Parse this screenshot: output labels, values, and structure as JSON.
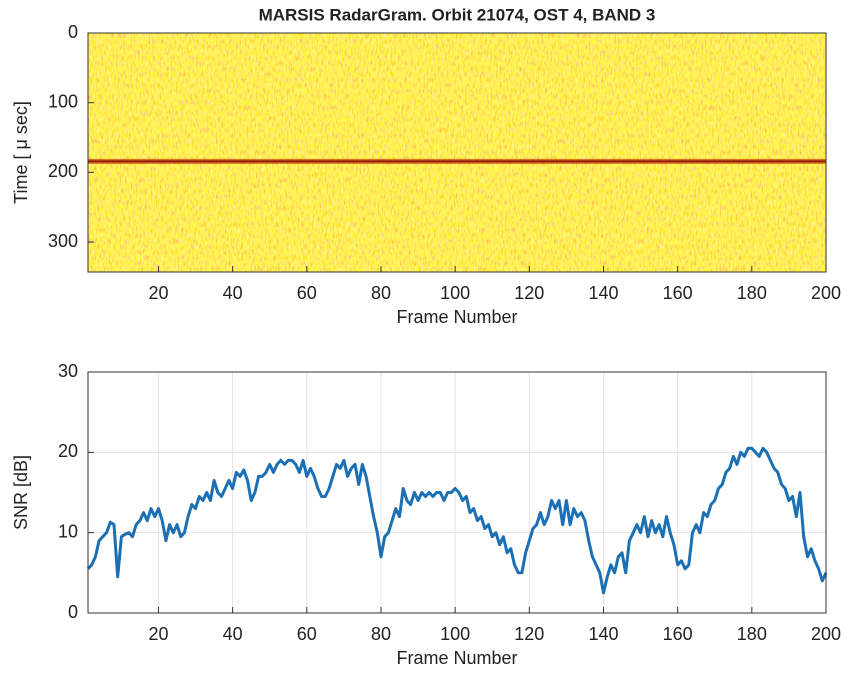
{
  "chart_data": [
    {
      "type": "image",
      "title": "MARSIS RadarGram. Orbit 21074, OST 4, BAND 3",
      "x_label": "Frame Number",
      "y_label": "Time [ μ sec]",
      "xlim": [
        1,
        200
      ],
      "xticks": [
        20,
        40,
        60,
        80,
        100,
        120,
        140,
        160,
        180,
        200
      ],
      "ylim": [
        0,
        343
      ],
      "yticks": [
        0,
        100,
        200,
        300
      ],
      "y_reversed": true,
      "grid": false
    },
    {
      "type": "line",
      "x_label": "Frame Number",
      "y_label": "SNR [dB]",
      "xlim": [
        1,
        200
      ],
      "xticks": [
        20,
        40,
        60,
        80,
        100,
        120,
        140,
        160,
        180,
        200
      ],
      "ylim": [
        0,
        30
      ],
      "yticks": [
        0,
        10,
        20,
        30
      ],
      "grid": true,
      "x": [
        1,
        2,
        3,
        4,
        5,
        6,
        7,
        8,
        9,
        10,
        11,
        12,
        13,
        14,
        15,
        16,
        17,
        18,
        19,
        20,
        21,
        22,
        23,
        24,
        25,
        26,
        27,
        28,
        29,
        30,
        31,
        32,
        33,
        34,
        35,
        36,
        37,
        38,
        39,
        40,
        41,
        42,
        43,
        44,
        45,
        46,
        47,
        48,
        49,
        50,
        51,
        52,
        53,
        54,
        55,
        56,
        57,
        58,
        59,
        60,
        61,
        62,
        63,
        64,
        65,
        66,
        67,
        68,
        69,
        70,
        71,
        72,
        73,
        74,
        75,
        76,
        77,
        78,
        79,
        80,
        81,
        82,
        83,
        84,
        85,
        86,
        87,
        88,
        89,
        90,
        91,
        92,
        93,
        94,
        95,
        96,
        97,
        98,
        99,
        100,
        101,
        102,
        103,
        104,
        105,
        106,
        107,
        108,
        109,
        110,
        111,
        112,
        113,
        114,
        115,
        116,
        117,
        118,
        119,
        120,
        121,
        122,
        123,
        124,
        125,
        126,
        127,
        128,
        129,
        130,
        131,
        132,
        133,
        134,
        135,
        136,
        137,
        138,
        139,
        140,
        141,
        142,
        143,
        144,
        145,
        146,
        147,
        148,
        149,
        150,
        151,
        152,
        153,
        154,
        155,
        156,
        157,
        158,
        159,
        160,
        161,
        162,
        163,
        164,
        165,
        166,
        167,
        168,
        169,
        170,
        171,
        172,
        173,
        174,
        175,
        176,
        177,
        178,
        179,
        180,
        181,
        182,
        183,
        184,
        185,
        186,
        187,
        188,
        189,
        190,
        191,
        192,
        193,
        194,
        195,
        196,
        197,
        198,
        199,
        200
      ],
      "series": [
        {
          "color": "#1a6fb5",
          "values": [
            5.5,
            6,
            7,
            9,
            9.5,
            10,
            11.3,
            11,
            4.5,
            9.5,
            9.8,
            10,
            9.5,
            11,
            11.5,
            12.5,
            11.5,
            13,
            12,
            13,
            11.5,
            9,
            11,
            10,
            11,
            9.5,
            10,
            12,
            13.5,
            13,
            14.5,
            14,
            15,
            14,
            16.5,
            15,
            14.5,
            15.5,
            16.5,
            15.5,
            17.5,
            17,
            17.8,
            16.5,
            14,
            15,
            17,
            17,
            17.5,
            18.5,
            17.5,
            18.5,
            19,
            18.5,
            19,
            19,
            18.5,
            17.5,
            19,
            17,
            18,
            17,
            15.5,
            14.5,
            14.5,
            15.5,
            17,
            18.5,
            18,
            19,
            17,
            18,
            18.5,
            16,
            18.5,
            17,
            14.5,
            12,
            10,
            7,
            9.5,
            10,
            11.5,
            13,
            12,
            15.5,
            14,
            13.5,
            15,
            14,
            15,
            14.5,
            15,
            14.5,
            15,
            15,
            14,
            15,
            15,
            15.5,
            15,
            14,
            14.5,
            12.5,
            13,
            11.5,
            12,
            10.5,
            11,
            9.5,
            10,
            8.5,
            9.5,
            7.5,
            8,
            6,
            5,
            5,
            7.5,
            9,
            10.5,
            11,
            12.5,
            11,
            12,
            14,
            13,
            14,
            11,
            14,
            11,
            13,
            12,
            12.5,
            11.5,
            9,
            7,
            6,
            5,
            2.5,
            4.5,
            6,
            5,
            7,
            7.5,
            5,
            9,
            10,
            11,
            10,
            12,
            9.5,
            11.5,
            10,
            11,
            9.5,
            12,
            10,
            8.5,
            6,
            6.5,
            5.5,
            6,
            10,
            11,
            10,
            12.5,
            12,
            13.5,
            14,
            15.5,
            16,
            17.5,
            18,
            19.5,
            18.5,
            20,
            19.5,
            20.5,
            20.5,
            20,
            19.5,
            20.5,
            20,
            19,
            18,
            17.5,
            16,
            15.5,
            14,
            14.5,
            12,
            15,
            9.5,
            7,
            8,
            6.5,
            5.5,
            4,
            5
          ]
        }
      ]
    }
  ]
}
